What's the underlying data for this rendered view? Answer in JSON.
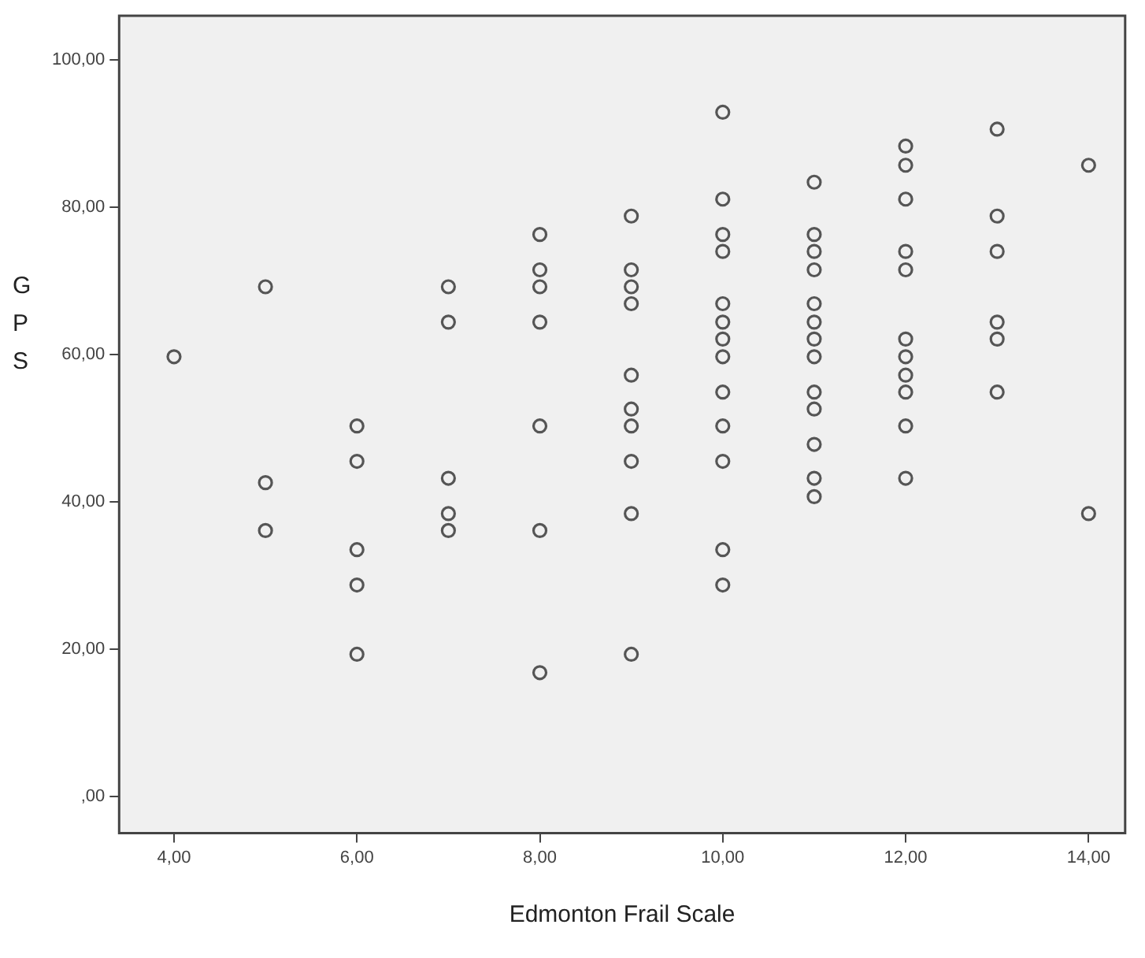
{
  "chart_data": {
    "type": "scatter",
    "xlabel": "Edmonton Frail Scale",
    "ylabel": "GPS",
    "xlim": [
      3.4,
      14.4
    ],
    "xticks": [
      {
        "value": 4,
        "label": "4,00"
      },
      {
        "value": 6,
        "label": "6,00"
      },
      {
        "value": 8,
        "label": "8,00"
      },
      {
        "value": 10,
        "label": "10,00"
      },
      {
        "value": 12,
        "label": "12,00"
      },
      {
        "value": 14,
        "label": "14,00"
      }
    ],
    "ylim": [
      -5,
      106
    ],
    "yticks": [
      {
        "value": 0,
        "label": ",00"
      },
      {
        "value": 20,
        "label": "20,00"
      },
      {
        "value": 40,
        "label": "40,00"
      },
      {
        "value": 60,
        "label": "60,00"
      },
      {
        "value": 80,
        "label": "80,00"
      },
      {
        "value": 100,
        "label": "100,00"
      }
    ],
    "grid": false,
    "legend": false,
    "marker": "circle",
    "series": [
      {
        "color": "#555555",
        "x": [
          4,
          5,
          5,
          5,
          6,
          6,
          6,
          6,
          6,
          7,
          7,
          7,
          7,
          7,
          8,
          8,
          8,
          8,
          8,
          8,
          8,
          9,
          9,
          9,
          9,
          9,
          9,
          9,
          9,
          9,
          9,
          10,
          10,
          10,
          10,
          10,
          10,
          10,
          10,
          10,
          10,
          10,
          10,
          10,
          11,
          11,
          11,
          11,
          11,
          11,
          11,
          11,
          11,
          11,
          11,
          11,
          11,
          12,
          12,
          12,
          12,
          12,
          12,
          12,
          12,
          12,
          12,
          12,
          13,
          13,
          13,
          13,
          13,
          13,
          14,
          14
        ],
        "values": [
          59.7,
          69.2,
          42.6,
          36.1,
          50.3,
          45.5,
          33.5,
          28.7,
          19.3,
          69.2,
          64.4,
          43.2,
          38.4,
          36.1,
          76.3,
          71.5,
          69.2,
          64.4,
          50.3,
          36.1,
          16.8,
          78.8,
          71.5,
          69.2,
          66.9,
          57.2,
          52.6,
          50.3,
          45.5,
          38.4,
          19.3,
          92.9,
          81.1,
          76.3,
          74.0,
          66.9,
          64.4,
          62.1,
          59.7,
          54.9,
          50.3,
          45.5,
          33.5,
          28.7,
          83.4,
          76.3,
          74.0,
          71.5,
          66.9,
          64.4,
          62.1,
          59.7,
          54.9,
          52.6,
          47.8,
          43.2,
          40.7,
          88.3,
          85.7,
          81.1,
          74.0,
          71.5,
          62.1,
          59.7,
          57.2,
          54.9,
          50.3,
          43.2,
          90.6,
          78.8,
          74.0,
          64.4,
          62.1,
          54.9,
          85.7,
          38.4
        ]
      }
    ]
  }
}
